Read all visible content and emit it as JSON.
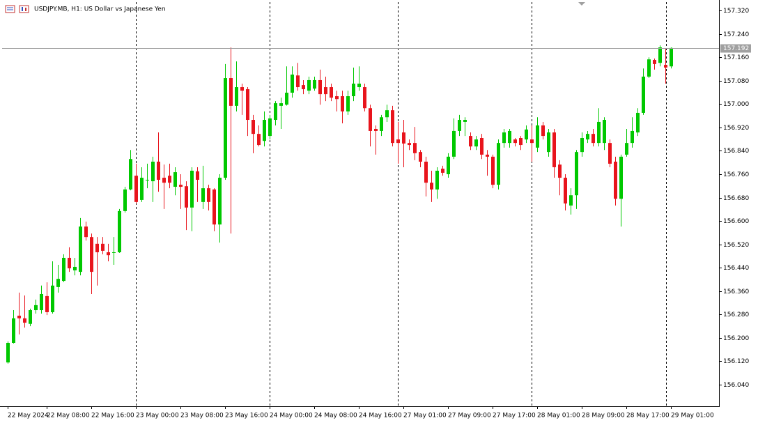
{
  "chart_data": {
    "type": "candlestick",
    "title": "USDJPY.MB, H1:  US Dollar vs Japanese Yen",
    "categories": [
      "22 May 2024",
      null,
      null,
      null,
      null,
      null,
      null,
      "22 May 08:00",
      null,
      null,
      null,
      null,
      null,
      null,
      null,
      "22 May 16:00",
      null,
      null,
      null,
      null,
      null,
      null,
      null,
      "23 May 00:00",
      null,
      null,
      null,
      null,
      null,
      null,
      null,
      "23 May 08:00",
      null,
      null,
      null,
      null,
      null,
      null,
      null,
      "23 May 16:00",
      null,
      null,
      null,
      null,
      null,
      null,
      null,
      "24 May 00:00",
      null,
      null,
      null,
      null,
      null,
      null,
      null,
      "24 May 08:00",
      null,
      null,
      null,
      null,
      null,
      null,
      null,
      "24 May 16:00",
      null,
      null,
      null,
      null,
      null,
      null,
      null,
      "27 May 01:00",
      null,
      null,
      null,
      null,
      null,
      null,
      null,
      "27 May 09:00",
      null,
      null,
      null,
      null,
      null,
      null,
      null,
      "27 May 17:00",
      null,
      null,
      null,
      null,
      null,
      null,
      null,
      "28 May 01:00",
      null,
      null,
      null,
      null,
      null,
      null,
      null,
      "28 May 09:00",
      null,
      null,
      null,
      null,
      null,
      null,
      null,
      "28 May 17:00",
      null,
      null,
      null,
      null,
      null,
      null,
      null,
      "29 May 01:00"
    ],
    "open": [
      156.116,
      156.183,
      156.276,
      156.267,
      156.248,
      156.295,
      156.295,
      156.343,
      156.288,
      156.374,
      156.395,
      156.474,
      156.431,
      156.426,
      156.581,
      156.545,
      156.522,
      156.522,
      156.493,
      156.491,
      156.493,
      156.634,
      156.708,
      156.755,
      156.672,
      156.739,
      156.736,
      156.803,
      156.748,
      156.755,
      156.717,
      156.724,
      156.719,
      156.646,
      156.77,
      156.665,
      156.712,
      156.708,
      156.588,
      156.748,
      157.089,
      156.994,
      157.058,
      157.051,
      156.946,
      156.898,
      156.874,
      156.891,
      156.946,
      156.994,
      156.998,
      157.039,
      157.098,
      157.065,
      157.046,
      157.053,
      157.082,
      157.058,
      157.058,
      157.027,
      157.027,
      156.975,
      157.027,
      157.058,
      157.058,
      156.986,
      156.915,
      156.908,
      156.955,
      156.979,
      156.879,
      156.903,
      156.867,
      156.867,
      156.836,
      156.803,
      156.731,
      156.708,
      156.779,
      156.76,
      156.82,
      156.908,
      156.939,
      156.891,
      156.855,
      156.884,
      156.827,
      156.82,
      156.724,
      156.867,
      156.867,
      156.879,
      156.884,
      156.879,
      156.879,
      156.851,
      156.927,
      156.836,
      156.903,
      156.793,
      156.748,
      156.653,
      156.688,
      156.836,
      156.879,
      156.898,
      156.867,
      156.867,
      156.867,
      156.803,
      156.676,
      156.827,
      156.867,
      156.903,
      156.97,
      157.094,
      157.151,
      157.141,
      157.134,
      157.129
    ],
    "high": [
      156.188,
      156.295,
      156.355,
      156.345,
      156.3,
      156.331,
      156.379,
      156.39,
      156.462,
      156.45,
      156.486,
      156.51,
      156.474,
      156.61,
      156.598,
      156.557,
      156.545,
      156.545,
      156.522,
      156.545,
      156.641,
      156.717,
      156.843,
      156.796,
      156.784,
      156.796,
      156.82,
      156.903,
      156.793,
      156.796,
      156.784,
      156.76,
      156.736,
      156.784,
      156.784,
      156.789,
      156.724,
      156.712,
      156.76,
      157.137,
      157.194,
      157.146,
      157.07,
      157.058,
      156.963,
      156.927,
      156.975,
      156.963,
      157.01,
      157.022,
      157.129,
      157.129,
      157.141,
      157.082,
      157.094,
      157.094,
      157.118,
      157.094,
      157.07,
      157.046,
      157.046,
      157.046,
      157.125,
      157.129,
      157.07,
      156.998,
      156.927,
      156.963,
      156.998,
      156.994,
      156.939,
      156.946,
      156.879,
      156.922,
      156.843,
      156.82,
      156.772,
      156.784,
      156.789,
      156.832,
      156.951,
      156.963,
      156.955,
      156.903,
      156.891,
      156.898,
      156.843,
      156.827,
      156.879,
      156.915,
      156.915,
      156.884,
      156.891,
      156.927,
      156.927,
      156.955,
      156.939,
      156.915,
      156.915,
      156.808,
      156.76,
      156.712,
      156.843,
      156.903,
      156.908,
      156.915,
      156.986,
      156.955,
      156.879,
      156.82,
      156.827,
      156.915,
      156.955,
      156.986,
      157.122,
      157.16,
      157.156,
      157.201,
      157.189,
      157.194
    ],
    "low": [
      156.112,
      156.181,
      156.212,
      156.235,
      156.24,
      156.283,
      156.283,
      156.278,
      156.283,
      156.355,
      156.391,
      156.426,
      156.414,
      156.414,
      156.533,
      156.35,
      156.379,
      156.486,
      156.462,
      156.45,
      156.491,
      156.629,
      156.705,
      156.66,
      156.665,
      156.712,
      156.665,
      156.7,
      156.641,
      156.712,
      156.688,
      156.641,
      156.569,
      156.565,
      156.665,
      156.641,
      156.636,
      156.565,
      156.526,
      156.741,
      156.557,
      156.975,
      156.963,
      156.891,
      156.832,
      156.855,
      156.855,
      156.879,
      156.927,
      156.915,
      156.995,
      157.022,
      157.046,
      157.034,
      157.034,
      157.046,
      156.998,
      157.01,
      157.01,
      156.975,
      156.934,
      156.963,
      157.01,
      157.046,
      156.975,
      156.855,
      156.827,
      156.891,
      156.939,
      156.855,
      156.796,
      156.784,
      156.843,
      156.808,
      156.784,
      156.684,
      156.665,
      156.676,
      156.755,
      156.748,
      156.812,
      156.891,
      156.891,
      156.843,
      156.843,
      156.812,
      156.755,
      156.712,
      156.708,
      156.851,
      156.851,
      156.855,
      156.843,
      156.867,
      156.803,
      156.836,
      156.879,
      156.82,
      156.748,
      156.688,
      156.636,
      156.622,
      156.641,
      156.82,
      156.867,
      156.855,
      156.855,
      156.843,
      156.784,
      156.653,
      156.581,
      156.82,
      156.851,
      156.891,
      156.963,
      157.089,
      157.118,
      157.129,
      157.07,
      157.122
    ],
    "close": [
      156.183,
      156.267,
      156.267,
      156.252,
      156.295,
      156.312,
      156.35,
      156.288,
      156.379,
      156.402,
      156.474,
      156.438,
      156.443,
      156.581,
      156.545,
      156.426,
      156.493,
      156.498,
      156.483,
      156.493,
      156.634,
      156.708,
      156.812,
      156.665,
      156.748,
      156.741,
      156.803,
      156.741,
      156.731,
      156.731,
      156.767,
      156.717,
      156.646,
      156.772,
      156.741,
      156.712,
      156.665,
      156.588,
      156.748,
      157.089,
      156.994,
      157.058,
      157.046,
      156.946,
      156.898,
      156.86,
      156.946,
      156.951,
      157.003,
      157.003,
      157.039,
      157.101,
      157.058,
      157.051,
      157.082,
      157.082,
      157.034,
      157.034,
      157.022,
      157.017,
      156.975,
      157.027,
      157.07,
      157.07,
      156.986,
      156.908,
      156.908,
      156.955,
      156.979,
      156.867,
      156.867,
      156.865,
      156.86,
      156.832,
      156.803,
      156.731,
      156.708,
      156.772,
      156.765,
      156.82,
      156.908,
      156.946,
      156.946,
      156.855,
      156.879,
      156.827,
      156.82,
      156.724,
      156.867,
      156.903,
      156.908,
      156.867,
      156.86,
      156.913,
      156.867,
      156.927,
      156.891,
      156.903,
      156.784,
      156.748,
      156.66,
      156.688,
      156.836,
      156.884,
      156.898,
      156.867,
      156.939,
      156.946,
      156.796,
      156.676,
      156.82,
      156.867,
      156.908,
      156.97,
      157.094,
      157.153,
      157.137,
      157.194,
      157.125,
      157.192
    ],
    "up_color": "#00c800",
    "down_color": "#e8141c",
    "ylim": [
      155.966,
      157.349
    ],
    "yticks": [
      {
        "value": 157.32,
        "label": "157.320"
      },
      {
        "value": 157.24,
        "label": "157.240"
      },
      {
        "value": 157.16,
        "label": "157.160"
      },
      {
        "value": 157.08,
        "label": "157.080"
      },
      {
        "value": 157.0,
        "label": "157.000"
      },
      {
        "value": 156.92,
        "label": "156.920"
      },
      {
        "value": 156.84,
        "label": "156.840"
      },
      {
        "value": 156.76,
        "label": "156.760"
      },
      {
        "value": 156.68,
        "label": "156.680"
      },
      {
        "value": 156.6,
        "label": "156.600"
      },
      {
        "value": 156.52,
        "label": "156.520"
      },
      {
        "value": 156.44,
        "label": "156.440"
      },
      {
        "value": 156.36,
        "label": "156.360"
      },
      {
        "value": 156.28,
        "label": "156.280"
      },
      {
        "value": 156.2,
        "label": "156.200"
      },
      {
        "value": 156.12,
        "label": "156.120"
      },
      {
        "value": 156.04,
        "label": "156.040"
      }
    ],
    "last_price": 157.192
  }
}
